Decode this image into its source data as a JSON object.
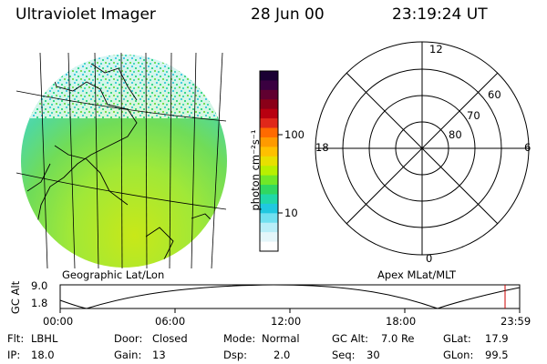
{
  "header": {
    "title": "Ultraviolet Imager",
    "date": "28 Jun 00",
    "time": "23:19:24 UT"
  },
  "colorbar": {
    "unit_label": "photon cm⁻²s⁻¹",
    "ticks": [
      "100",
      "10"
    ],
    "colors": [
      "#1a0033",
      "#3a0040",
      "#600030",
      "#8a0018",
      "#b80010",
      "#e0281a",
      "#ff6a00",
      "#ff9a00",
      "#ffc000",
      "#e8e000",
      "#b8f000",
      "#70e828",
      "#30d860",
      "#20d8a8",
      "#20c8e0",
      "#70e0f0",
      "#b8eef8",
      "#e4f6fa",
      "#ffffff"
    ]
  },
  "left_panel": {
    "caption": "Geographic Lat/Lon"
  },
  "right_panel": {
    "caption": "Apex MLat/MLT",
    "mlt_labels": {
      "top": "12",
      "left": "18",
      "right": "6",
      "bottom": "0"
    },
    "lat_labels": [
      "60",
      "70",
      "80"
    ]
  },
  "gc_alt_plot": {
    "ylabel": "GC Alt",
    "yticks": [
      "9.0",
      "1.8"
    ],
    "xticks": [
      "00:00",
      "06:00",
      "12:00",
      "18:00",
      "23:59"
    ],
    "marker_color": "#cc0000"
  },
  "info": {
    "flt_key": "Flt:",
    "flt_val": "LBHL",
    "door_key": "Door:",
    "door_val": "Closed",
    "mode_key": "Mode:",
    "mode_val": "Normal",
    "gcalt_key": "GC Alt:",
    "gcalt_val": "7.0 Re",
    "glat_key": "GLat:",
    "glat_val": "17.9",
    "ip_key": "IP:",
    "ip_val": "18.0",
    "gain_key": "Gain:",
    "gain_val": "13",
    "dsp_key": "Dsp:",
    "dsp_val": "2.0",
    "seq_key": "Seq:",
    "seq_val": "30",
    "glon_key": "GLon:",
    "glon_val": "99.5"
  }
}
